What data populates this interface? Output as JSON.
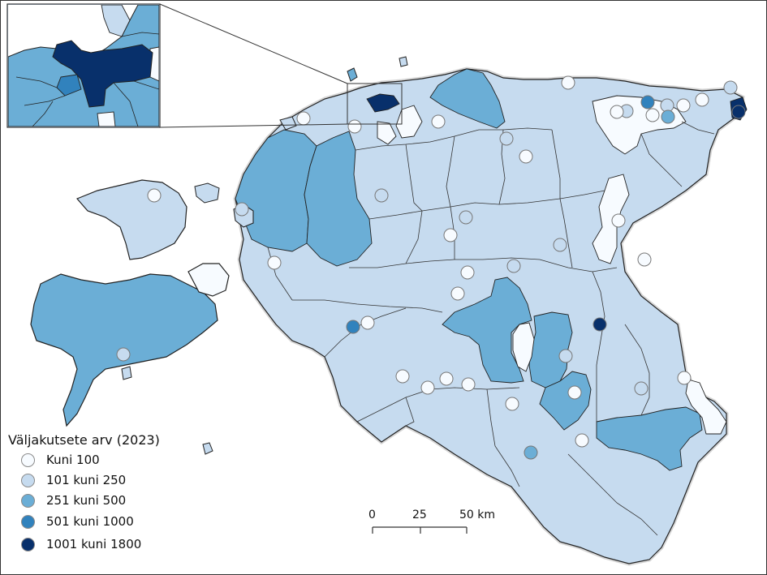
{
  "legend": {
    "title": "Väljakutsete arv (2023)",
    "classes": [
      {
        "label": "Kuni 100",
        "color": "#f7fbff"
      },
      {
        "label": "101 kuni 250",
        "color": "#c6dbef"
      },
      {
        "label": "251 kuni 500",
        "color": "#6baed6"
      },
      {
        "label": "501 kuni 1000",
        "color": "#3182bd"
      },
      {
        "label": "1001 kuni 1800",
        "color": "#08306b"
      }
    ]
  },
  "scalebar": {
    "ticks": [
      "0",
      "25",
      "50 km"
    ]
  },
  "colors": {
    "region_light": "#c6dbef",
    "region_mid": "#6baed6",
    "region_dark": "#08306b",
    "region_lowest": "#f7fbff",
    "outline": "#222222",
    "inset_border": "#333333"
  }
}
